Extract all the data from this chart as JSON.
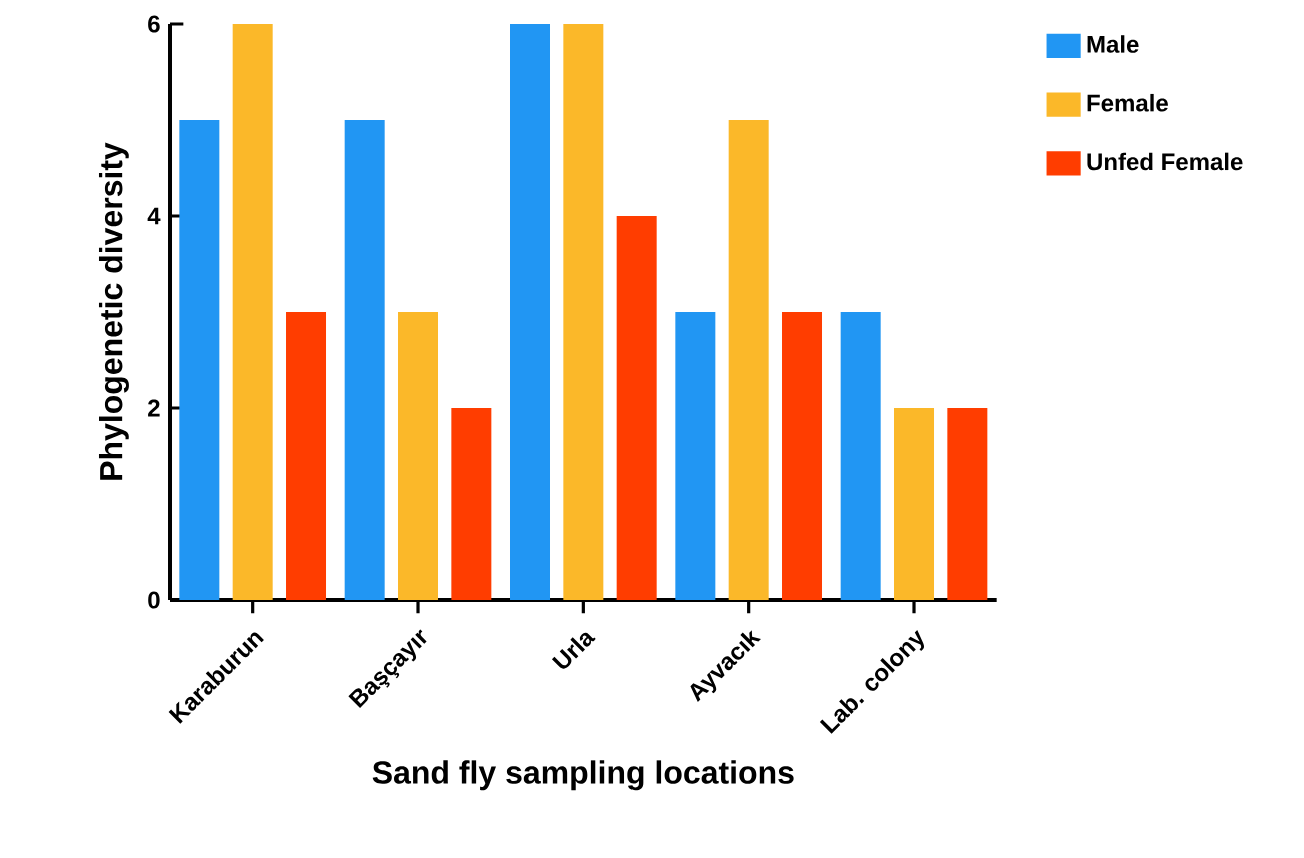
{
  "chart_data": {
    "type": "bar",
    "xlabel": "Sand fly sampling locations",
    "ylabel": "Phylogenetic diversity",
    "categories": [
      "Karaburun",
      "Başçayır",
      "Urla",
      "Ayvacık",
      "Lab. colony"
    ],
    "series": [
      {
        "name": "Male",
        "color": "#2196f3",
        "values": [
          5,
          5,
          6,
          3,
          3
        ]
      },
      {
        "name": "Female",
        "color": "#fbb829",
        "values": [
          6,
          3,
          6,
          5,
          2
        ]
      },
      {
        "name": "Unfed Female",
        "color": "#ff3d00",
        "values": [
          3,
          2,
          4,
          3,
          2
        ]
      }
    ],
    "ylim": [
      0,
      6
    ],
    "yticks": [
      0,
      2,
      4,
      6
    ],
    "grid": false,
    "legend": "top right"
  }
}
